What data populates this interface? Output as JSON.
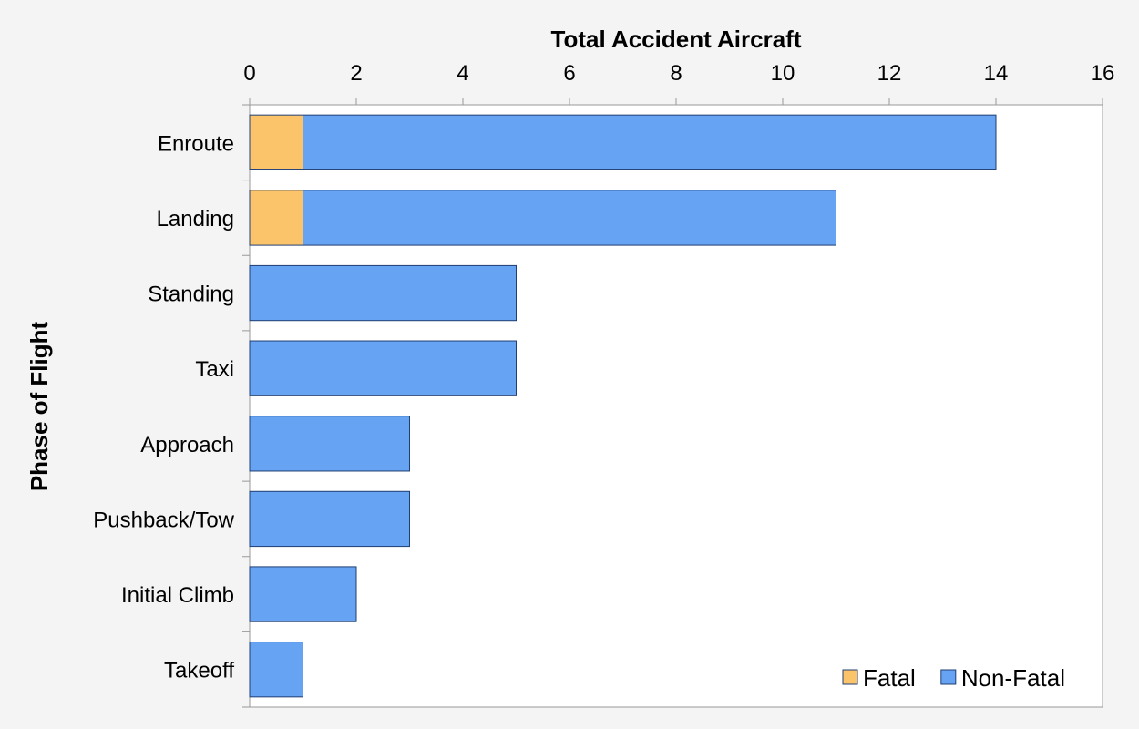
{
  "chart_data": {
    "type": "bar",
    "orientation": "horizontal",
    "stacked": true,
    "title": "",
    "xlabel": "Total Accident Aircraft",
    "ylabel": "Phase of Flight",
    "xlim": [
      0,
      16
    ],
    "xticks": [
      0,
      2,
      4,
      6,
      8,
      10,
      12,
      14,
      16
    ],
    "x_axis_position": "top",
    "grid": false,
    "legend_position": "bottom-right",
    "categories": [
      "Enroute",
      "Landing",
      "Standing",
      "Taxi",
      "Approach",
      "Pushback/Tow",
      "Initial Climb",
      "Takeoff"
    ],
    "series": [
      {
        "name": "Fatal",
        "color": "#fcc46a",
        "values": [
          1,
          1,
          0,
          0,
          0,
          0,
          0,
          0
        ]
      },
      {
        "name": "Non-Fatal",
        "color": "#66a3f2",
        "values": [
          13,
          10,
          5,
          5,
          3,
          3,
          2,
          1
        ]
      }
    ]
  }
}
